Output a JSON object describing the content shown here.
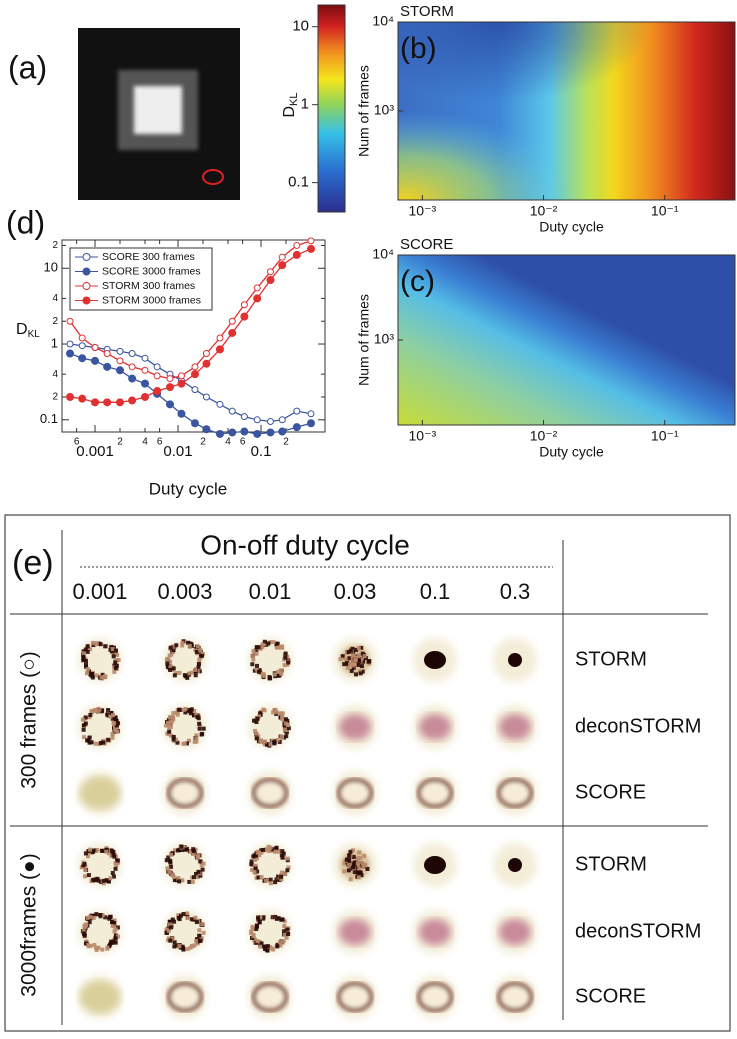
{
  "panels": {
    "a": "(a)",
    "b": "(b)",
    "c": "(c)",
    "d": "(d)",
    "e": "(e)"
  },
  "colorbar": {
    "label": "D",
    "label_sub": "KL",
    "clim": [
      0.042,
      19
    ],
    "ticks": [
      10,
      1,
      0.1
    ]
  },
  "heatmaps": [
    {
      "title": "STORM",
      "xlabel": "Duty cycle",
      "ylabel": "Num of frames",
      "xlim": [
        0.00063,
        0.38
      ],
      "ylim": [
        100,
        10000
      ],
      "xticks": [
        {
          "value": 0.001,
          "label": "10⁻³"
        },
        {
          "value": 0.01,
          "label": "10⁻²"
        },
        {
          "value": 0.1,
          "label": "10⁻¹"
        }
      ],
      "yticks": [
        {
          "value": 1000,
          "label": "10³"
        },
        {
          "value": 10000,
          "label": "10⁴"
        }
      ]
    },
    {
      "title": "SCORE",
      "xlabel": "Duty cycle",
      "ylabel": "Num of frames",
      "xlim": [
        0.00063,
        0.38
      ],
      "ylim": [
        100,
        10000
      ],
      "xticks": [
        {
          "value": 0.001,
          "label": "10⁻³"
        },
        {
          "value": 0.01,
          "label": "10⁻²"
        },
        {
          "value": 0.1,
          "label": "10⁻¹"
        }
      ],
      "yticks": [
        {
          "value": 1000,
          "label": "10³"
        },
        {
          "value": 10000,
          "label": "10⁴"
        }
      ]
    }
  ],
  "chart_data": {
    "type": "line",
    "xlabel": "Duty cycle",
    "ylabel": "D",
    "ylabel_sub": "KL",
    "log_x": true,
    "log_y": true,
    "xlim": [
      0.0004,
      0.59
    ],
    "ylim": [
      0.069,
      23.6
    ],
    "xticks": [
      {
        "value": 0.0006,
        "label": "6"
      },
      0.001,
      {
        "value": 0.002,
        "label": "2"
      },
      {
        "value": 0.004,
        "label": "4"
      },
      {
        "value": 0.006,
        "label": "6"
      },
      0.01,
      {
        "value": 0.02,
        "label": "2"
      },
      {
        "value": 0.04,
        "label": "4"
      },
      {
        "value": 0.06,
        "label": "6"
      },
      0.1,
      {
        "value": 0.2,
        "label": "2"
      }
    ],
    "yticks": [
      {
        "value": 20,
        "label": "2"
      },
      10,
      {
        "value": 4,
        "label": "4"
      },
      {
        "value": 2,
        "label": "2"
      },
      1,
      {
        "value": 0.4,
        "label": "4"
      },
      {
        "value": 0.2,
        "label": "2"
      },
      0.1
    ],
    "x": [
      0.0005,
      0.0007,
      0.001,
      0.0014,
      0.002,
      0.0028,
      0.004,
      0.0056,
      0.008,
      0.011,
      0.016,
      0.022,
      0.032,
      0.045,
      0.063,
      0.09,
      0.13,
      0.18,
      0.27,
      0.4
    ],
    "series": [
      {
        "name": "SCORE 300 frames",
        "color": "#3b55a0",
        "marker": "open",
        "values": [
          1.0,
          0.95,
          0.9,
          0.85,
          0.8,
          0.75,
          0.65,
          0.5,
          0.4,
          0.33,
          0.25,
          0.2,
          0.16,
          0.13,
          0.11,
          0.1,
          0.095,
          0.1,
          0.13,
          0.12
        ]
      },
      {
        "name": "SCORE 3000 frames",
        "color": "#3b55a0",
        "marker": "filled",
        "values": [
          0.75,
          0.65,
          0.6,
          0.5,
          0.45,
          0.35,
          0.3,
          0.22,
          0.16,
          0.12,
          0.09,
          0.075,
          0.065,
          0.068,
          0.07,
          0.065,
          0.068,
          0.07,
          0.08,
          0.09
        ]
      },
      {
        "name": "STORM 300 frames",
        "color": "#e03030",
        "marker": "open",
        "values": [
          2.0,
          1.2,
          0.9,
          0.75,
          0.6,
          0.5,
          0.45,
          0.38,
          0.35,
          0.38,
          0.5,
          0.75,
          1.2,
          2.0,
          3.3,
          5.5,
          9,
          14,
          20,
          23
        ]
      },
      {
        "name": "STORM 3000 frames",
        "color": "#e03030",
        "marker": "filled",
        "values": [
          0.2,
          0.19,
          0.17,
          0.17,
          0.17,
          0.18,
          0.2,
          0.24,
          0.27,
          0.3,
          0.4,
          0.55,
          0.85,
          1.4,
          2.3,
          4,
          7,
          11,
          15,
          18
        ]
      }
    ]
  },
  "figure_e": {
    "title": "On-off duty cycle",
    "columns": [
      "0.001",
      "0.003",
      "0.01",
      "0.03",
      "0.1",
      "0.3"
    ],
    "groups": [
      {
        "label": "300 frames (○)",
        "rows": [
          "STORM",
          "deconSTORM",
          "SCORE"
        ]
      },
      {
        "label": "3000frames (●)",
        "rows": [
          "STORM",
          "deconSTORM",
          "SCORE"
        ]
      }
    ]
  }
}
